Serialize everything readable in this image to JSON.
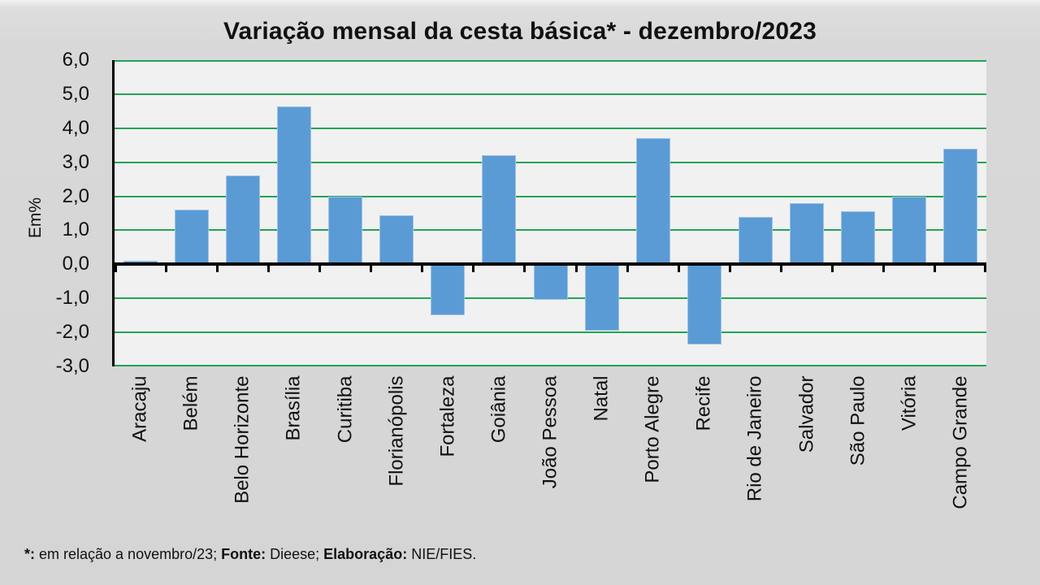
{
  "chart_data": {
    "type": "bar",
    "title": "Variação mensal da cesta básica* - dezembro/2023",
    "ylabel": "Em%",
    "xlabel": "",
    "ylim": [
      -3.0,
      6.0
    ],
    "ytick_values": [
      6,
      5,
      4,
      3,
      2,
      1,
      0,
      -1,
      -2,
      -3
    ],
    "ytick_labels": [
      "6,0",
      "5,0",
      "4,0",
      "3,0",
      "2,0",
      "1,0",
      "0,0",
      "-1,0",
      "-2,0",
      "-3,0"
    ],
    "grid": true,
    "legend_position": "none",
    "categories": [
      "Aracaju",
      "Belém",
      "Belo Horizonte",
      "Brasília",
      "Curitiba",
      "Florianópolis",
      "Fortaleza",
      "Goiânia",
      "João Pessoa",
      "Natal",
      "Porto Alegre",
      "Recife",
      "Rio de Janeiro",
      "Salvador",
      "São Paulo",
      "Vitória",
      "Campo Grande"
    ],
    "values": [
      0.1,
      1.6,
      2.6,
      4.65,
      2.0,
      1.45,
      -1.5,
      3.2,
      -1.05,
      -1.95,
      3.7,
      -2.35,
      1.4,
      1.8,
      1.55,
      2.0,
      3.4
    ]
  },
  "footer": {
    "segments": [
      {
        "text": "*:",
        "bold": true
      },
      {
        "text": " em relação a novembro/23; ",
        "bold": false
      },
      {
        "text": "Fonte:",
        "bold": true
      },
      {
        "text": " Dieese; ",
        "bold": false
      },
      {
        "text": "Elaboração:",
        "bold": true
      },
      {
        "text": " NIE/FIES.",
        "bold": false
      }
    ]
  },
  "colors": {
    "bar_fill": "#5b9bd5",
    "bar_border": "#9dc3e6",
    "gridline_green": "#22a455",
    "axis_black": "#000000",
    "plot_background": "#f1f1f1",
    "page_background": "#d7d7d7"
  }
}
